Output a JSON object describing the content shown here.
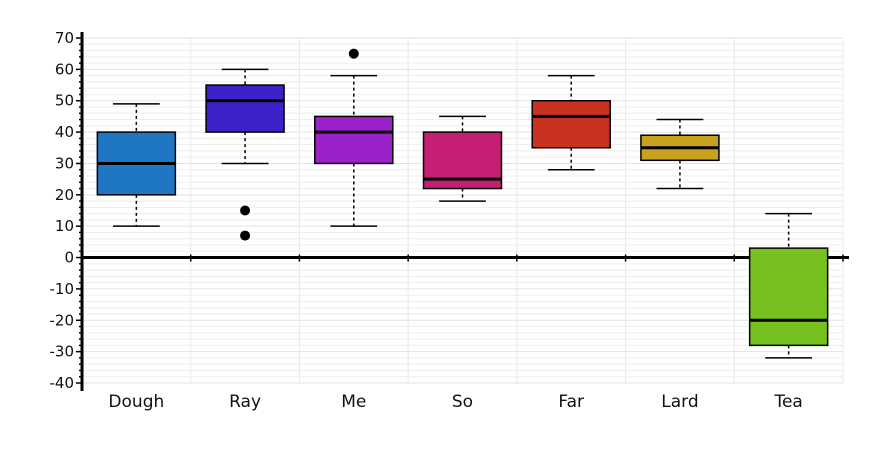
{
  "chart_data": {
    "type": "boxplot",
    "title": "",
    "xlabel": "",
    "ylabel": "",
    "ylim": [
      -40,
      70
    ],
    "yticks": [
      70,
      60,
      50,
      40,
      30,
      20,
      10,
      0,
      -10,
      -20,
      -30,
      -40
    ],
    "grid": true,
    "categories": [
      "Dough",
      "Ray",
      "Me",
      "So",
      "Far",
      "Lard",
      "Tea"
    ],
    "boxes": [
      {
        "name": "Dough",
        "whisker_low": 10,
        "q1": 20,
        "median": 30,
        "q3": 40,
        "whisker_high": 49,
        "outliers": [],
        "color": "#1f77c4"
      },
      {
        "name": "Ray",
        "whisker_low": 30,
        "q1": 40,
        "median": 50,
        "q3": 55,
        "whisker_high": 60,
        "outliers": [
          15,
          7
        ],
        "color": "#3b22c8"
      },
      {
        "name": "Me",
        "whisker_low": 10,
        "q1": 30,
        "median": 40,
        "q3": 45,
        "whisker_high": 58,
        "outliers": [
          65
        ],
        "color": "#9a22c8"
      },
      {
        "name": "So",
        "whisker_low": 18,
        "q1": 22,
        "median": 25,
        "q3": 40,
        "whisker_high": 45,
        "outliers": [],
        "color": "#c41f73"
      },
      {
        "name": "Far",
        "whisker_low": 28,
        "q1": 35,
        "median": 45,
        "q3": 50,
        "whisker_high": 58,
        "outliers": [],
        "color": "#c8321f"
      },
      {
        "name": "Lard",
        "whisker_low": 22,
        "q1": 31,
        "median": 35,
        "q3": 39,
        "whisker_high": 44,
        "outliers": [],
        "color": "#c8a21f"
      },
      {
        "name": "Tea",
        "whisker_low": -32,
        "q1": -28,
        "median": -20,
        "q3": 3,
        "whisker_high": 14,
        "outliers": [],
        "color": "#76c01f"
      }
    ]
  }
}
